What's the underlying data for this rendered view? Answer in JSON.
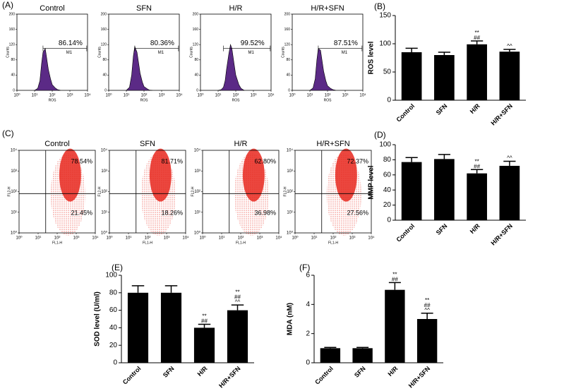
{
  "chart_data": [
    {
      "type": "area",
      "panel": "(A)",
      "title": "Control",
      "xlabel": "ROS",
      "ylabel": "Counts",
      "xscale": "log",
      "xlim": [
        1,
        10000
      ],
      "xticks": [
        {
          "value": 1,
          "label": "10⁰"
        },
        {
          "value": 10,
          "label": "10¹"
        },
        {
          "value": 100,
          "label": "10²"
        },
        {
          "value": 1000,
          "label": "10³"
        },
        {
          "value": 10000,
          "label": "10⁴"
        }
      ],
      "ylim": [
        0,
        200
      ],
      "yticks": [
        0,
        40,
        80,
        120,
        160,
        200
      ],
      "x": [
        10,
        15,
        20,
        25,
        30,
        40,
        50,
        60,
        80,
        100,
        150,
        200,
        300
      ],
      "values": [
        0,
        5,
        25,
        70,
        100,
        110,
        80,
        55,
        30,
        15,
        6,
        2,
        0
      ],
      "color": "#5b2a86",
      "gate": {
        "label": "M1",
        "percent": "86.14%",
        "x": [
          30,
          9000
        ]
      }
    },
    {
      "type": "area",
      "title": "SFN",
      "xlabel": "ROS",
      "ylabel": "Counts",
      "xscale": "log",
      "xlim": [
        1,
        10000
      ],
      "xticks": [
        {
          "value": 1,
          "label": "10⁰"
        },
        {
          "value": 10,
          "label": "10¹"
        },
        {
          "value": 100,
          "label": "10²"
        },
        {
          "value": 1000,
          "label": "10³"
        },
        {
          "value": 10000,
          "label": "10⁴"
        }
      ],
      "ylim": [
        0,
        200
      ],
      "yticks": [
        0,
        40,
        80,
        120,
        160,
        200
      ],
      "x": [
        10,
        15,
        20,
        25,
        30,
        40,
        50,
        60,
        80,
        100,
        150,
        200,
        300
      ],
      "values": [
        0,
        8,
        40,
        90,
        115,
        100,
        70,
        45,
        22,
        10,
        4,
        1,
        0
      ],
      "color": "#5b2a86",
      "gate": {
        "label": "M1",
        "percent": "80.36%",
        "x": [
          30,
          9000
        ]
      }
    },
    {
      "type": "area",
      "title": "H/R",
      "xlabel": "ROS",
      "ylabel": "Counts",
      "xscale": "log",
      "xlim": [
        1,
        10000
      ],
      "xticks": [
        {
          "value": 1,
          "label": "10⁰"
        },
        {
          "value": 10,
          "label": "10¹"
        },
        {
          "value": 100,
          "label": "10²"
        },
        {
          "value": 1000,
          "label": "10³"
        },
        {
          "value": 10000,
          "label": "10⁴"
        }
      ],
      "ylim": [
        0,
        200
      ],
      "yticks": [
        0,
        40,
        80,
        120,
        160,
        200
      ],
      "x": [
        10,
        15,
        20,
        25,
        30,
        40,
        50,
        60,
        80,
        100,
        150,
        200,
        300
      ],
      "values": [
        0,
        2,
        8,
        25,
        55,
        95,
        120,
        110,
        70,
        40,
        15,
        5,
        0
      ],
      "color": "#5b2a86",
      "gate": {
        "label": "M1",
        "percent": "99.52%",
        "x": [
          20,
          9000
        ]
      }
    },
    {
      "type": "area",
      "title": "H/R+SFN",
      "xlabel": "ROS",
      "ylabel": "Counts",
      "xscale": "log",
      "xlim": [
        1,
        10000
      ],
      "xticks": [
        {
          "value": 1,
          "label": "10⁰"
        },
        {
          "value": 10,
          "label": "10¹"
        },
        {
          "value": 100,
          "label": "10²"
        },
        {
          "value": 1000,
          "label": "10³"
        },
        {
          "value": 10000,
          "label": "10⁴"
        }
      ],
      "ylim": [
        0,
        200
      ],
      "yticks": [
        0,
        40,
        80,
        120,
        160,
        200
      ],
      "x": [
        10,
        15,
        20,
        25,
        30,
        40,
        50,
        60,
        80,
        100,
        150,
        200,
        300
      ],
      "values": [
        0,
        6,
        30,
        80,
        110,
        105,
        75,
        50,
        25,
        12,
        5,
        2,
        0
      ],
      "color": "#5b2a86",
      "gate": {
        "label": "M1",
        "percent": "87.51%",
        "x": [
          30,
          9000
        ]
      }
    },
    {
      "type": "bar",
      "panel": "(B)",
      "ylabel": "ROS level",
      "categories": [
        "Control",
        "SFN",
        "H/R",
        "H/R+SFN"
      ],
      "values": [
        85,
        80,
        99,
        86
      ],
      "errors": [
        7,
        5,
        6,
        4
      ],
      "annotations": [
        [],
        [],
        [
          "**",
          "##"
        ],
        [
          "^^"
        ]
      ],
      "ylim": [
        0,
        150
      ],
      "yticks": [
        0,
        50,
        100,
        150
      ],
      "color": "#000000"
    },
    {
      "type": "scatter",
      "panel": "(C)",
      "title": "Control",
      "xlabel": "FL1-H",
      "ylabel": "FL2-H",
      "xscale": "log",
      "yscale": "log",
      "xlim": [
        1,
        10000
      ],
      "ylim": [
        1,
        10000
      ],
      "xticks": [
        {
          "value": 1,
          "label": "10⁰"
        },
        {
          "value": 10,
          "label": "10¹"
        },
        {
          "value": 100,
          "label": "10²"
        },
        {
          "value": 1000,
          "label": "10³"
        },
        {
          "value": 10000,
          "label": "10⁴"
        }
      ],
      "yticks": [
        {
          "value": 1,
          "label": "10⁰"
        },
        {
          "value": 10,
          "label": "10¹"
        },
        {
          "value": 100,
          "label": "10²"
        },
        {
          "value": 1000,
          "label": "10³"
        },
        {
          "value": 10000,
          "label": "10⁴"
        }
      ],
      "quadrant": {
        "x": 25,
        "y": 80
      },
      "upper_right": "78.54%",
      "lower_right": "21.45%",
      "color": "#e8281e"
    },
    {
      "type": "scatter",
      "title": "SFN",
      "xlabel": "FL1-H",
      "ylabel": "FL2-H",
      "xscale": "log",
      "yscale": "log",
      "xlim": [
        1,
        10000
      ],
      "ylim": [
        1,
        10000
      ],
      "xticks": [
        {
          "value": 1,
          "label": "10⁰"
        },
        {
          "value": 10,
          "label": "10¹"
        },
        {
          "value": 100,
          "label": "10²"
        },
        {
          "value": 1000,
          "label": "10³"
        },
        {
          "value": 10000,
          "label": "10⁴"
        }
      ],
      "yticks": [
        {
          "value": 1,
          "label": "10⁰"
        },
        {
          "value": 10,
          "label": "10¹"
        },
        {
          "value": 100,
          "label": "10²"
        },
        {
          "value": 1000,
          "label": "10³"
        },
        {
          "value": 10000,
          "label": "10⁴"
        }
      ],
      "quadrant": {
        "x": 25,
        "y": 80
      },
      "upper_right": "81.71%",
      "lower_right": "18.26%",
      "color": "#e8281e"
    },
    {
      "type": "scatter",
      "title": "H/R",
      "xlabel": "FL1-H",
      "ylabel": "FL2-H",
      "xscale": "log",
      "yscale": "log",
      "xlim": [
        1,
        10000
      ],
      "ylim": [
        1,
        10000
      ],
      "xticks": [
        {
          "value": 1,
          "label": "10⁰"
        },
        {
          "value": 10,
          "label": "10¹"
        },
        {
          "value": 100,
          "label": "10²"
        },
        {
          "value": 1000,
          "label": "10³"
        },
        {
          "value": 10000,
          "label": "10⁴"
        }
      ],
      "yticks": [
        {
          "value": 1,
          "label": "10⁰"
        },
        {
          "value": 10,
          "label": "10¹"
        },
        {
          "value": 100,
          "label": "10²"
        },
        {
          "value": 1000,
          "label": "10³"
        },
        {
          "value": 10000,
          "label": "10⁴"
        }
      ],
      "quadrant": {
        "x": 25,
        "y": 80
      },
      "upper_right": "62.80%",
      "lower_right": "36.98%",
      "color": "#e8281e"
    },
    {
      "type": "scatter",
      "title": "H/R+SFN",
      "xlabel": "FL1-H",
      "ylabel": "FL2-H",
      "xscale": "log",
      "yscale": "log",
      "xlim": [
        1,
        10000
      ],
      "ylim": [
        1,
        10000
      ],
      "xticks": [
        {
          "value": 1,
          "label": "10⁰"
        },
        {
          "value": 10,
          "label": "10¹"
        },
        {
          "value": 100,
          "label": "10²"
        },
        {
          "value": 1000,
          "label": "10³"
        },
        {
          "value": 10000,
          "label": "10⁴"
        }
      ],
      "yticks": [
        {
          "value": 1,
          "label": "10⁰"
        },
        {
          "value": 10,
          "label": "10¹"
        },
        {
          "value": 100,
          "label": "10²"
        },
        {
          "value": 1000,
          "label": "10³"
        },
        {
          "value": 10000,
          "label": "10⁴"
        }
      ],
      "quadrant": {
        "x": 25,
        "y": 80
      },
      "upper_right": "72.37%",
      "lower_right": "27.56%",
      "color": "#e8281e"
    },
    {
      "type": "bar",
      "panel": "(D)",
      "ylabel": "MMP level",
      "categories": [
        "Control",
        "SFN",
        "H/R",
        "H/R+SFN"
      ],
      "values": [
        77,
        81,
        62,
        72
      ],
      "errors": [
        6,
        6,
        5,
        6
      ],
      "annotations": [
        [],
        [],
        [
          "**",
          "##"
        ],
        [
          "^^"
        ]
      ],
      "ylim": [
        0,
        100
      ],
      "yticks": [
        0,
        20,
        40,
        60,
        80,
        100
      ],
      "color": "#000000"
    },
    {
      "type": "bar",
      "panel": "(E)",
      "ylabel": "SOD level (U/ml)",
      "categories": [
        "Control",
        "SFN",
        "H/R",
        "H/R+SFN"
      ],
      "values": [
        80,
        80,
        40,
        60
      ],
      "errors": [
        8,
        8,
        4,
        6
      ],
      "annotations": [
        [],
        [],
        [
          "**",
          "##"
        ],
        [
          "**",
          "##",
          "^^"
        ]
      ],
      "ylim": [
        0,
        100
      ],
      "yticks": [
        0,
        20,
        40,
        60,
        80,
        100
      ],
      "color": "#000000"
    },
    {
      "type": "bar",
      "panel": "(F)",
      "ylabel": "MDA (nM)",
      "categories": [
        "Control",
        "SFN",
        "H/R",
        "H/R+SFN"
      ],
      "values": [
        1,
        1,
        5,
        3
      ],
      "errors": [
        0.05,
        0.05,
        0.5,
        0.4
      ],
      "annotations": [
        [],
        [],
        [
          "**",
          "##"
        ],
        [
          "**",
          "##",
          "^^"
        ]
      ],
      "ylim": [
        0,
        6
      ],
      "yticks": [
        0,
        2,
        4,
        6
      ],
      "color": "#000000"
    }
  ]
}
